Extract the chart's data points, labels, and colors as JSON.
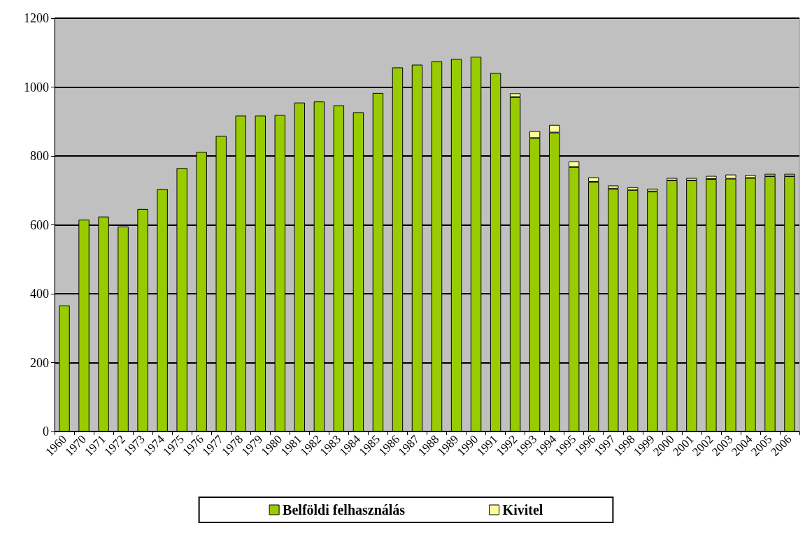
{
  "chart_data": {
    "type": "bar",
    "stacked": true,
    "categories": [
      "1960",
      "1970",
      "1971",
      "1972",
      "1973",
      "1974",
      "1975",
      "1976",
      "1977",
      "1978",
      "1979",
      "1980",
      "1981",
      "1982",
      "1983",
      "1984",
      "1985",
      "1986",
      "1987",
      "1988",
      "1989",
      "1990",
      "1991",
      "1992",
      "1993",
      "1994",
      "1995",
      "1996",
      "1997",
      "1998",
      "1999",
      "2000",
      "2001",
      "2002",
      "2003",
      "2004",
      "2005",
      "2006"
    ],
    "series": [
      {
        "name": "Belföldi felhasználás",
        "color": "#99cc00",
        "values": [
          366,
          615,
          624,
          595,
          646,
          704,
          765,
          812,
          858,
          917,
          917,
          919,
          955,
          958,
          947,
          927,
          983,
          1057,
          1065,
          1075,
          1082,
          1088,
          1041,
          971,
          852,
          868,
          768,
          725,
          705,
          701,
          697,
          729,
          729,
          733,
          734,
          736,
          741,
          741
        ]
      },
      {
        "name": "Kivitel",
        "color": "#ffff99",
        "values": [
          null,
          null,
          null,
          null,
          null,
          null,
          null,
          null,
          null,
          null,
          null,
          null,
          null,
          null,
          null,
          null,
          null,
          null,
          null,
          null,
          null,
          null,
          null,
          11,
          20,
          22,
          16,
          13,
          9,
          8,
          8,
          7,
          7,
          9,
          12,
          9,
          7,
          7
        ]
      }
    ],
    "ylim": [
      0,
      1200
    ],
    "yticks": [
      0,
      200,
      400,
      600,
      800,
      1000,
      1200
    ],
    "grid": "y",
    "legend": "bottom"
  }
}
